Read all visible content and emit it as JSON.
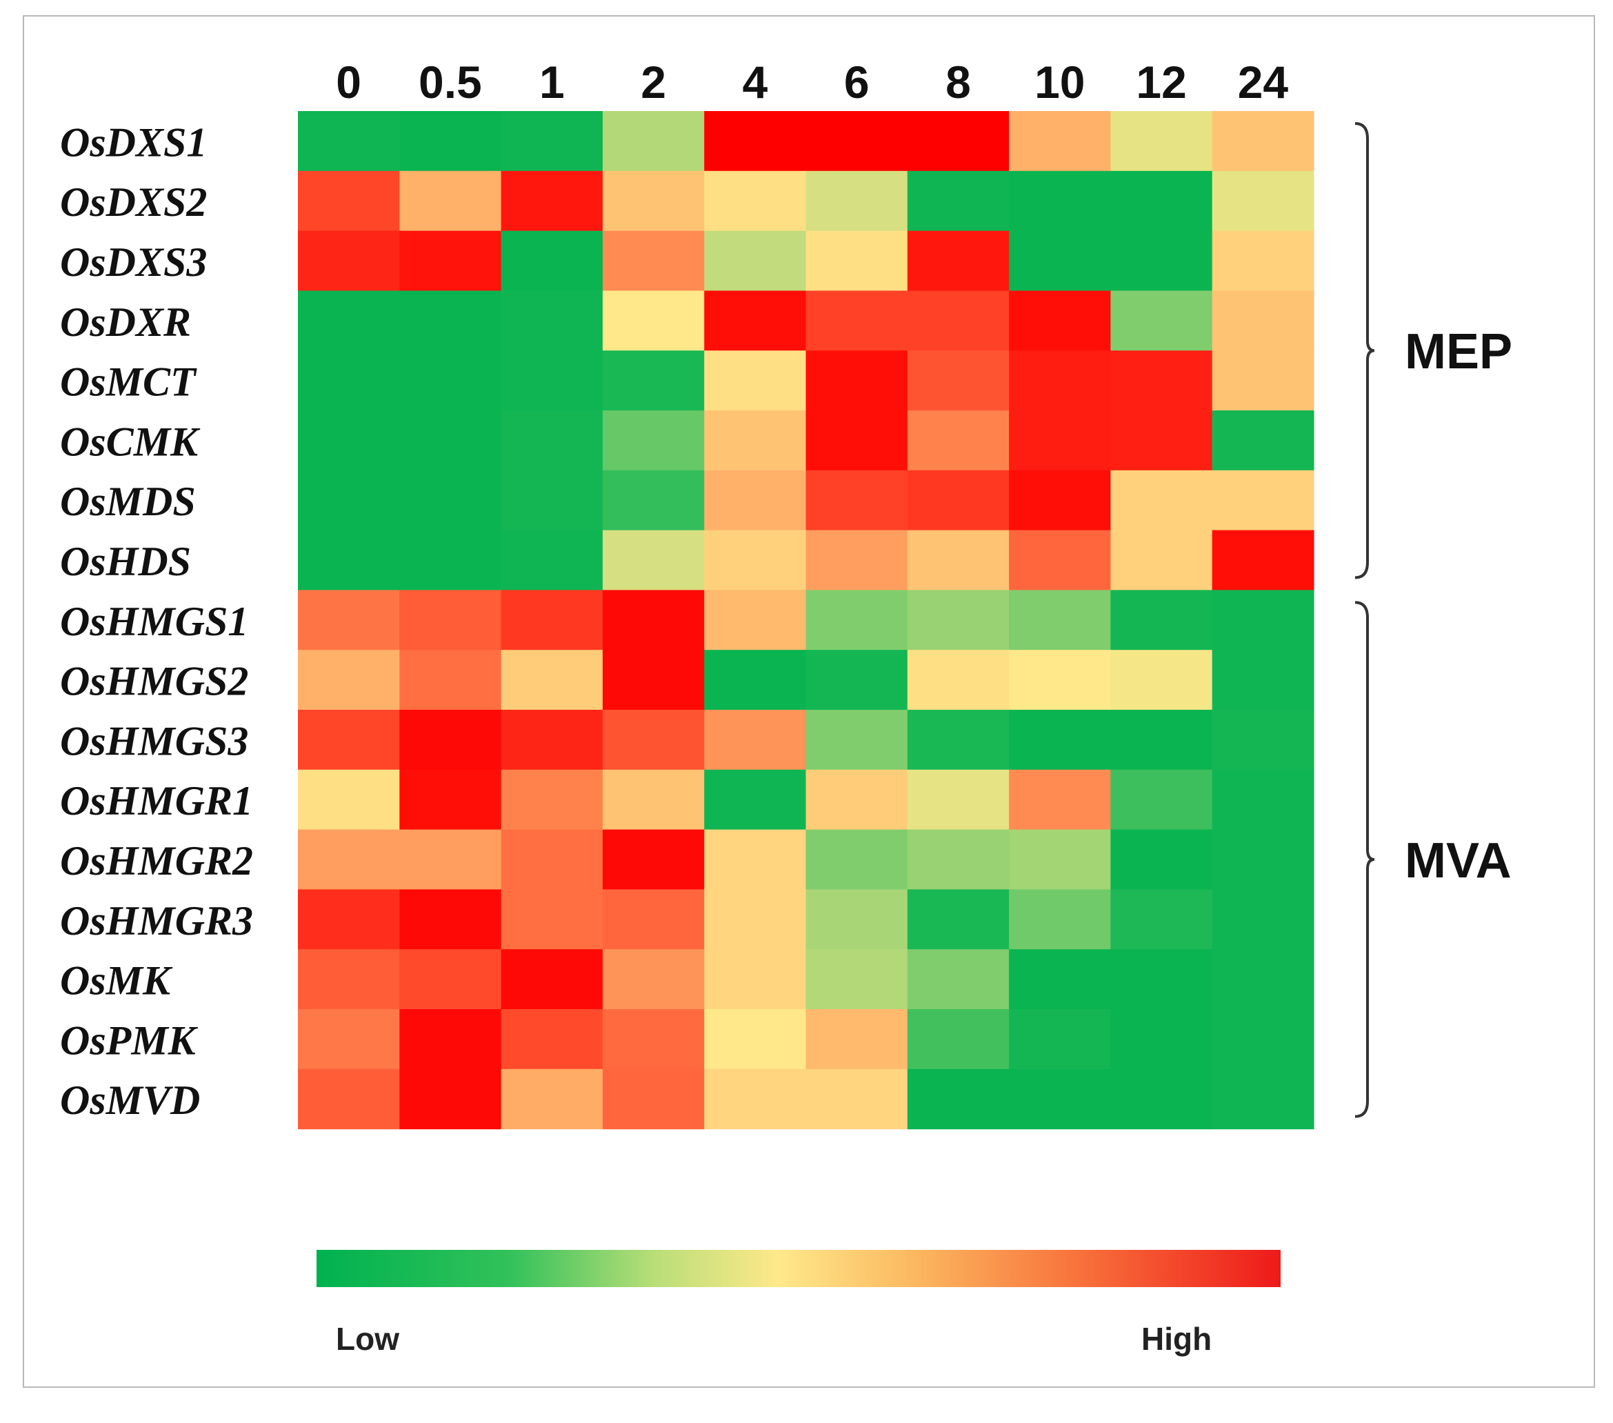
{
  "chart_data": {
    "type": "heatmap",
    "title": "",
    "columns": [
      "0",
      "0.5",
      "1",
      "2",
      "4",
      "6",
      "8",
      "10",
      "12",
      "24"
    ],
    "rows": [
      "OsDXS1",
      "OsDXS2",
      "OsDXS3",
      "OsDXR",
      "OsMCT",
      "OsCMK",
      "OsMDS",
      "OsHDS",
      "OsHMGS1",
      "OsHMGS2",
      "OsHMGS3",
      "OsHMGR1",
      "OsHMGR2",
      "OsHMGR3",
      "OsMK",
      "OsPMK",
      "OsMVD"
    ],
    "value_scale": "relative expression, 0 = Low, 1 = High",
    "values": [
      [
        0.03,
        0.02,
        0.03,
        0.35,
        1.0,
        1.0,
        1.0,
        0.62,
        0.45,
        0.58
      ],
      [
        0.85,
        0.62,
        0.95,
        0.58,
        0.52,
        0.42,
        0.03,
        0.02,
        0.02,
        0.45
      ],
      [
        0.92,
        0.96,
        0.02,
        0.7,
        0.38,
        0.52,
        0.95,
        0.02,
        0.02,
        0.55
      ],
      [
        0.02,
        0.02,
        0.03,
        0.5,
        0.97,
        0.86,
        0.86,
        0.97,
        0.25,
        0.58
      ],
      [
        0.02,
        0.02,
        0.03,
        0.05,
        0.52,
        0.97,
        0.82,
        0.94,
        0.93,
        0.58
      ],
      [
        0.02,
        0.02,
        0.04,
        0.2,
        0.58,
        0.97,
        0.72,
        0.94,
        0.93,
        0.04
      ],
      [
        0.02,
        0.02,
        0.04,
        0.1,
        0.62,
        0.86,
        0.88,
        0.97,
        0.55,
        0.55
      ],
      [
        0.02,
        0.02,
        0.03,
        0.42,
        0.55,
        0.66,
        0.58,
        0.78,
        0.55,
        0.97
      ],
      [
        0.75,
        0.8,
        0.88,
        0.98,
        0.6,
        0.25,
        0.3,
        0.25,
        0.04,
        0.03
      ],
      [
        0.62,
        0.76,
        0.56,
        0.98,
        0.02,
        0.04,
        0.52,
        0.5,
        0.48,
        0.03
      ],
      [
        0.85,
        0.98,
        0.92,
        0.82,
        0.68,
        0.25,
        0.05,
        0.02,
        0.02,
        0.04
      ],
      [
        0.52,
        0.97,
        0.72,
        0.58,
        0.03,
        0.56,
        0.45,
        0.7,
        0.12,
        0.03
      ],
      [
        0.66,
        0.66,
        0.76,
        0.98,
        0.54,
        0.25,
        0.3,
        0.32,
        0.02,
        0.03
      ],
      [
        0.9,
        0.98,
        0.76,
        0.78,
        0.54,
        0.33,
        0.05,
        0.22,
        0.06,
        0.03
      ],
      [
        0.8,
        0.84,
        0.98,
        0.68,
        0.54,
        0.35,
        0.25,
        0.02,
        0.02,
        0.03
      ],
      [
        0.74,
        0.98,
        0.84,
        0.77,
        0.5,
        0.6,
        0.13,
        0.04,
        0.02,
        0.03
      ],
      [
        0.8,
        0.98,
        0.63,
        0.78,
        0.54,
        0.54,
        0.02,
        0.02,
        0.02,
        0.03
      ]
    ],
    "groups": [
      {
        "name": "MEP",
        "from_row": 0,
        "to_row": 7
      },
      {
        "name": "MVA",
        "from_row": 8,
        "to_row": 16
      }
    ],
    "legend": {
      "low_label": "Low",
      "high_label": "High",
      "placement": "bottom"
    },
    "colormap": [
      "#00b24f",
      "#ffe88a",
      "#ff0000"
    ]
  }
}
